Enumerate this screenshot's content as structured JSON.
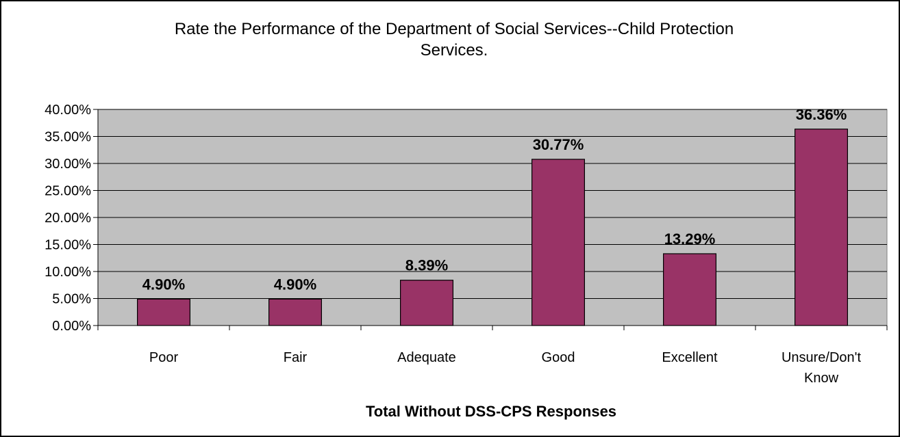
{
  "chart_data": {
    "type": "bar",
    "title_lines": [
      "Rate the Performance of the Department of Social Services--Child Protection",
      "Services."
    ],
    "xlabel": "Total Without DSS-CPS Responses",
    "ylabel": "",
    "categories": [
      [
        "Poor"
      ],
      [
        "Fair"
      ],
      [
        "Adequate"
      ],
      [
        "Good"
      ],
      [
        "Excellent"
      ],
      [
        "Unsure/Don't",
        "Know"
      ]
    ],
    "values": [
      4.9,
      4.9,
      8.39,
      30.77,
      13.29,
      36.36
    ],
    "data_labels": [
      "4.90%",
      "4.90%",
      "8.39%",
      "30.77%",
      "13.29%",
      "36.36%"
    ],
    "ylim": [
      0,
      40
    ],
    "yticks": [
      0,
      5,
      10,
      15,
      20,
      25,
      30,
      35,
      40
    ],
    "ytick_labels": [
      "0.00%",
      "5.00%",
      "10.00%",
      "15.00%",
      "20.00%",
      "25.00%",
      "30.00%",
      "35.00%",
      "40.00%"
    ],
    "grid": true,
    "legend": "none",
    "colors": {
      "bar": "#993366",
      "plot_background": "#c0c0c0",
      "gridline": "#000000"
    }
  }
}
